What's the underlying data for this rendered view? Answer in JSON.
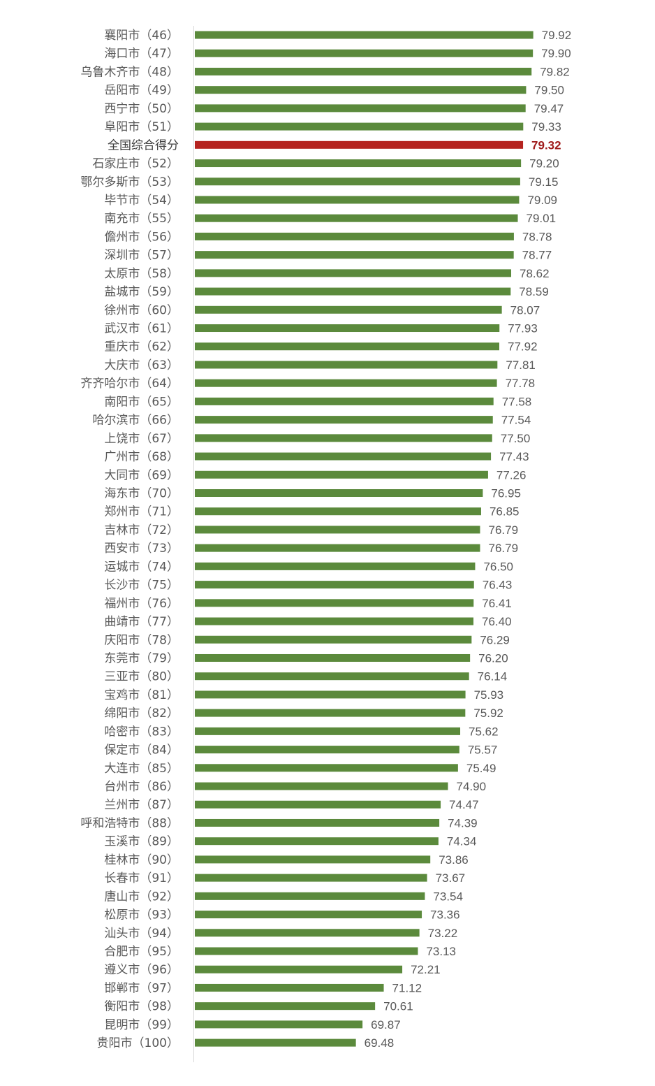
{
  "chart_data": {
    "type": "bar",
    "orientation": "horizontal",
    "categories": [
      "襄阳市（46）",
      "海口市（47）",
      "乌鲁木齐市（48）",
      "岳阳市（49）",
      "西宁市（50）",
      "阜阳市（51）",
      "全国综合得分",
      "石家庄市（52）",
      "鄂尔多斯市（53）",
      "毕节市（54）",
      "南充市（55）",
      "儋州市（56）",
      "深圳市（57）",
      "太原市（58）",
      "盐城市（59）",
      "徐州市（60）",
      "武汉市（61）",
      "重庆市（62）",
      "大庆市（63）",
      "齐齐哈尔市（64）",
      "南阳市（65）",
      "哈尔滨市（66）",
      "上饶市（67）",
      "广州市（68）",
      "大同市（69）",
      "海东市（70）",
      "郑州市（71）",
      "吉林市（72）",
      "西安市（73）",
      "运城市（74）",
      "长沙市（75）",
      "福州市（76）",
      "曲靖市（77）",
      "庆阳市（78）",
      "东莞市（79）",
      "三亚市（80）",
      "宝鸡市（81）",
      "绵阳市（82）",
      "哈密市（83）",
      "保定市（84）",
      "大连市（85）",
      "台州市（86）",
      "兰州市（87）",
      "呼和浩特市（88）",
      "玉溪市（89）",
      "桂林市（90）",
      "长春市（91）",
      "唐山市（92）",
      "松原市（93）",
      "汕头市（94）",
      "合肥市（95）",
      "遵义市（96）",
      "邯郸市（97）",
      "衡阳市（98）",
      "昆明市（99）",
      "贵阳市（100）"
    ],
    "values": [
      "79.92",
      "79.90",
      "79.82",
      "79.50",
      "79.47",
      "79.33",
      "79.32",
      "79.20",
      "79.15",
      "79.09",
      "79.01",
      "78.78",
      "78.77",
      "78.62",
      "78.59",
      "78.07",
      "77.93",
      "77.92",
      "77.81",
      "77.78",
      "77.58",
      "77.54",
      "77.50",
      "77.43",
      "77.26",
      "76.95",
      "76.85",
      "76.79",
      "76.79",
      "76.50",
      "76.43",
      "76.41",
      "76.40",
      "76.29",
      "76.20",
      "76.14",
      "75.93",
      "75.92",
      "75.62",
      "75.57",
      "75.49",
      "74.90",
      "74.47",
      "74.39",
      "74.34",
      "73.86",
      "73.67",
      "73.54",
      "73.36",
      "73.22",
      "73.13",
      "72.21",
      "71.12",
      "70.61",
      "69.87",
      "69.48"
    ],
    "highlight_category": "全国综合得分",
    "xlim": [
      60,
      80
    ],
    "grid": false,
    "legend": "none",
    "colors": {
      "bar": "#5b8a3c",
      "highlight_bar": "#b5231f",
      "highlight_label": "#a01c1c",
      "axis_line": "#d9d9d9",
      "label": "#595959"
    }
  }
}
